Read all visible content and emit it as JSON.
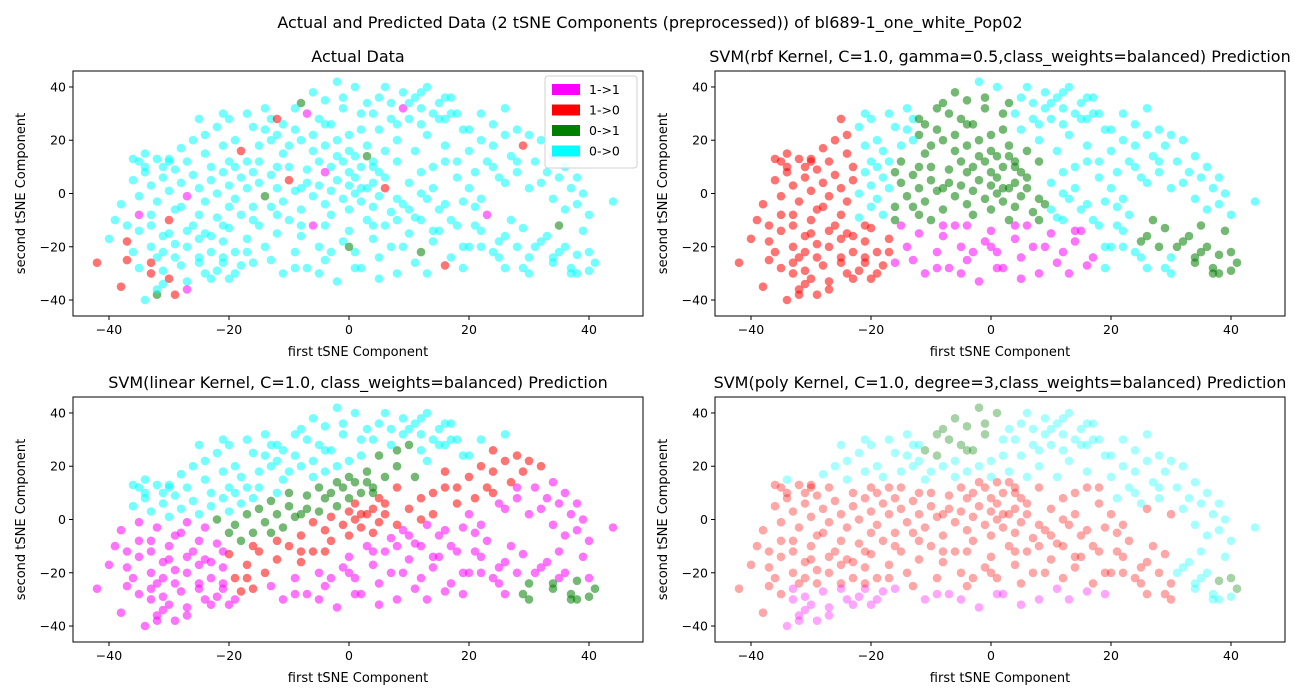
{
  "figure": {
    "suptitle": "Actual and Predicted Data (2 tSNE Components (preprocessed)) of bl689-1_one_white_Pop02"
  },
  "colors": {
    "1->1": "#ff00ff",
    "1->0": "#ff0000",
    "0->1": "#008000",
    "0->0": "#00ffff"
  },
  "legend": {
    "placement": "top-right of first panel",
    "entries": [
      "1->1",
      "1->0",
      "0->1",
      "0->0"
    ]
  },
  "chart_data": [
    {
      "type": "scatter",
      "title": "Actual Data",
      "xlabel": "first tSNE Component",
      "ylabel": "second tSNE Component",
      "xlim": [
        -46,
        49
      ],
      "ylim": [
        -46,
        46
      ],
      "xticks": [
        -40,
        -20,
        0,
        20,
        40
      ],
      "yticks": [
        -40,
        -20,
        0,
        20,
        40
      ],
      "xtick_labels": [
        "−40",
        "−20",
        "0",
        "20",
        "40"
      ],
      "ytick_labels": [
        "−40",
        "−20",
        "0",
        "20",
        "40"
      ],
      "point_alpha": 0.55,
      "classify": "actual"
    },
    {
      "type": "scatter",
      "title": "SVM(rbf Kernel, C=1.0, gamma=0.5,class_weights=balanced) Prediction",
      "xlabel": "first tSNE Component",
      "ylabel": "second tSNE Component",
      "xlim": [
        -46,
        49
      ],
      "ylim": [
        -46,
        46
      ],
      "xticks": [
        -40,
        -20,
        0,
        20,
        40
      ],
      "yticks": [
        -40,
        -20,
        0,
        20,
        40
      ],
      "xtick_labels": [
        "−40",
        "−20",
        "0",
        "20",
        "40"
      ],
      "ytick_labels": [
        "−40",
        "−20",
        "0",
        "20",
        "40"
      ],
      "point_alpha": 0.55,
      "classify": "rbf"
    },
    {
      "type": "scatter",
      "title": "SVM(linear Kernel, C=1.0, class_weights=balanced) Prediction",
      "xlabel": "first tSNE Component",
      "ylabel": "second tSNE Component",
      "xlim": [
        -46,
        49
      ],
      "ylim": [
        -46,
        46
      ],
      "xticks": [
        -40,
        -20,
        0,
        20,
        40
      ],
      "yticks": [
        -40,
        -20,
        0,
        20,
        40
      ],
      "xtick_labels": [
        "−40",
        "−20",
        "0",
        "20",
        "40"
      ],
      "ytick_labels": [
        "−40",
        "−20",
        "0",
        "20",
        "40"
      ],
      "point_alpha": 0.55,
      "classify": "linear"
    },
    {
      "type": "scatter",
      "title": "SVM(poly Kernel, C=1.0, degree=3,class_weights=balanced) Prediction",
      "xlabel": "first tSNE Component",
      "ylabel": "second tSNE Component",
      "xlim": [
        -46,
        49
      ],
      "ylim": [
        -46,
        46
      ],
      "xticks": [
        -40,
        -20,
        0,
        20,
        40
      ],
      "yticks": [
        -40,
        -20,
        0,
        20,
        40
      ],
      "xtick_labels": [
        "−40",
        "−20",
        "0",
        "20",
        "40"
      ],
      "ytick_labels": [
        "−40",
        "−20",
        "0",
        "20",
        "40"
      ],
      "point_alpha": 0.35,
      "classify": "poly"
    }
  ],
  "points": [
    [
      -42,
      -26
    ],
    [
      -40,
      -17
    ],
    [
      -38,
      -35
    ],
    [
      -37,
      -25
    ],
    [
      -36,
      13
    ],
    [
      -35,
      12
    ],
    [
      -34,
      10
    ],
    [
      -35,
      -8
    ],
    [
      -33,
      -8
    ],
    [
      -33,
      -20
    ],
    [
      -34,
      -40
    ],
    [
      -32,
      -38
    ],
    [
      -33,
      -30
    ],
    [
      -32,
      -24
    ],
    [
      -31,
      -29
    ],
    [
      -30,
      -32
    ],
    [
      -31,
      -22
    ],
    [
      -30,
      -15
    ],
    [
      -29,
      -19
    ],
    [
      -30,
      -10
    ],
    [
      -31,
      10
    ],
    [
      -30,
      13
    ],
    [
      -28,
      -5
    ],
    [
      -28,
      -27
    ],
    [
      -27,
      -20
    ],
    [
      -26,
      -12
    ],
    [
      -25,
      -17
    ],
    [
      -25,
      -24
    ],
    [
      -24,
      -15
    ],
    [
      -23,
      -22
    ],
    [
      -22,
      -9
    ],
    [
      -21,
      -18
    ],
    [
      -21,
      -26
    ],
    [
      -20,
      -13
    ],
    [
      -19,
      -22
    ],
    [
      -18,
      -8
    ],
    [
      -17,
      -17
    ],
    [
      -16,
      -26
    ],
    [
      -15,
      -12
    ],
    [
      -14,
      -20
    ],
    [
      -13,
      -25
    ],
    [
      -13,
      -5
    ],
    [
      -12,
      -15
    ],
    [
      -11,
      -30
    ],
    [
      -10,
      -10
    ],
    [
      -9,
      -22
    ],
    [
      -8,
      -16
    ],
    [
      -7,
      -28
    ],
    [
      -6,
      -12
    ],
    [
      -5,
      -20
    ],
    [
      -4,
      -25
    ],
    [
      -3,
      -8
    ],
    [
      -2,
      -33
    ],
    [
      -1,
      -18
    ],
    [
      0,
      -14
    ],
    [
      1,
      -22
    ],
    [
      2,
      -28
    ],
    [
      3,
      -10
    ],
    [
      4,
      -17
    ],
    [
      5,
      -24
    ],
    [
      6,
      -12
    ],
    [
      7,
      -20
    ],
    [
      8,
      -30
    ],
    [
      10,
      -15
    ],
    [
      12,
      -22
    ],
    [
      14,
      -18
    ],
    [
      16,
      -27
    ],
    [
      18,
      -12
    ],
    [
      20,
      -20
    ],
    [
      22,
      -14
    ],
    [
      24,
      -22
    ],
    [
      26,
      -16
    ],
    [
      28,
      -20
    ],
    [
      30,
      -24
    ],
    [
      32,
      -18
    ],
    [
      34,
      -26
    ],
    [
      36,
      -20
    ],
    [
      37,
      -28
    ],
    [
      38,
      -30
    ],
    [
      40,
      -29
    ],
    [
      40,
      -22
    ],
    [
      41,
      -26
    ],
    [
      38,
      -23
    ],
    [
      35,
      -22
    ],
    [
      33,
      -16
    ],
    [
      31,
      -20
    ],
    [
      29,
      -13
    ],
    [
      27,
      -10
    ],
    [
      25,
      -18
    ],
    [
      23,
      -8
    ],
    [
      21,
      -5
    ],
    [
      19,
      -3
    ],
    [
      17,
      -10
    ],
    [
      15,
      -6
    ],
    [
      13,
      -2
    ],
    [
      11,
      -9
    ],
    [
      9,
      -4
    ],
    [
      7,
      -7
    ],
    [
      5,
      -1
    ],
    [
      4,
      -5
    ],
    [
      3,
      2
    ],
    [
      2,
      -3
    ],
    [
      1,
      0
    ],
    [
      0,
      3
    ],
    [
      -1,
      -2
    ],
    [
      -2,
      5
    ],
    [
      -3,
      1
    ],
    [
      -4,
      -4
    ],
    [
      -5,
      3
    ],
    [
      -6,
      -1
    ],
    [
      -7,
      4
    ],
    [
      -8,
      -6
    ],
    [
      -9,
      1
    ],
    [
      -10,
      5
    ],
    [
      -11,
      -3
    ],
    [
      -12,
      2
    ],
    [
      -13,
      7
    ],
    [
      -14,
      -1
    ],
    [
      -15,
      4
    ],
    [
      -16,
      -5
    ],
    [
      -17,
      2
    ],
    [
      -18,
      6
    ],
    [
      -19,
      -2
    ],
    [
      -20,
      3
    ],
    [
      -21,
      8
    ],
    [
      -22,
      0
    ],
    [
      -23,
      5
    ],
    [
      -24,
      -3
    ],
    [
      -25,
      2
    ],
    [
      -26,
      7
    ],
    [
      -27,
      -1
    ],
    [
      -28,
      4
    ],
    [
      -29,
      9
    ],
    [
      -30,
      1
    ],
    [
      -31,
      6
    ],
    [
      -32,
      -3
    ],
    [
      -33,
      3
    ],
    [
      -34,
      8
    ],
    [
      -35,
      -1
    ],
    [
      -36,
      5
    ],
    [
      -36,
      -22
    ],
    [
      -37,
      -12
    ],
    [
      -38,
      -4
    ],
    [
      -32,
      -36
    ],
    [
      -29,
      -38
    ],
    [
      -27,
      -33
    ],
    [
      -24,
      -30
    ],
    [
      -22,
      -29
    ],
    [
      -20,
      -32
    ],
    [
      -18,
      -27
    ],
    [
      -34,
      15
    ],
    [
      -32,
      13
    ],
    [
      -30,
      12
    ],
    [
      -28,
      17
    ],
    [
      -26,
      20
    ],
    [
      -24,
      15
    ],
    [
      -22,
      25
    ],
    [
      -21,
      30
    ],
    [
      -20,
      28
    ],
    [
      -19,
      20
    ],
    [
      -18,
      16
    ],
    [
      -17,
      12
    ],
    [
      -16,
      25
    ],
    [
      -15,
      18
    ],
    [
      -14,
      32
    ],
    [
      -13,
      28
    ],
    [
      -12,
      22
    ],
    [
      -11,
      15
    ],
    [
      -10,
      10
    ],
    [
      -9,
      24
    ],
    [
      -8,
      34
    ],
    [
      -7,
      30
    ],
    [
      -6,
      38
    ],
    [
      -5,
      28
    ],
    [
      -4,
      18
    ],
    [
      -3,
      26
    ],
    [
      -2,
      42
    ],
    [
      -1,
      32
    ],
    [
      0,
      22
    ],
    [
      1,
      14
    ],
    [
      2,
      30
    ],
    [
      3,
      18
    ],
    [
      4,
      10
    ],
    [
      5,
      24
    ],
    [
      6,
      40
    ],
    [
      7,
      34
    ],
    [
      8,
      20
    ],
    [
      9,
      38
    ],
    [
      10,
      28
    ],
    [
      11,
      16
    ],
    [
      12,
      32
    ],
    [
      13,
      22
    ],
    [
      14,
      10
    ],
    [
      15,
      28
    ],
    [
      16,
      18
    ],
    [
      17,
      36
    ],
    [
      18,
      12
    ],
    [
      19,
      24
    ],
    [
      20,
      16
    ],
    [
      21,
      8
    ],
    [
      22,
      20
    ],
    [
      23,
      12
    ],
    [
      24,
      18
    ],
    [
      25,
      6
    ],
    [
      26,
      22
    ],
    [
      27,
      14
    ],
    [
      28,
      8
    ],
    [
      29,
      18
    ],
    [
      30,
      22
    ],
    [
      31,
      12
    ],
    [
      32,
      20
    ],
    [
      33,
      8
    ],
    [
      34,
      14
    ],
    [
      35,
      6
    ],
    [
      36,
      10
    ],
    [
      37,
      2
    ],
    [
      38,
      -4
    ],
    [
      39,
      0
    ],
    [
      40,
      -8
    ],
    [
      44,
      -3
    ],
    [
      -3,
      10
    ],
    [
      -1,
      12
    ],
    [
      1,
      6
    ],
    [
      3,
      14
    ],
    [
      5,
      8
    ],
    [
      -5,
      12
    ],
    [
      -7,
      9
    ],
    [
      2,
      24
    ],
    [
      4,
      30
    ],
    [
      -4,
      35
    ],
    [
      -6,
      22
    ],
    [
      6,
      16
    ],
    [
      8,
      12
    ],
    [
      10,
      4
    ],
    [
      12,
      8
    ],
    [
      14,
      2
    ],
    [
      16,
      12
    ],
    [
      18,
      6
    ],
    [
      20,
      2
    ],
    [
      22,
      -2
    ],
    [
      -9,
      32
    ],
    [
      -11,
      26
    ],
    [
      -13,
      20
    ],
    [
      -15,
      12
    ],
    [
      -17,
      30
    ],
    [
      -19,
      10
    ],
    [
      -21,
      18
    ],
    [
      -23,
      10
    ],
    [
      -25,
      28
    ],
    [
      -27,
      12
    ],
    [
      0,
      16
    ],
    [
      2,
      2
    ],
    [
      -2,
      20
    ],
    [
      -4,
      8
    ],
    [
      6,
      2
    ],
    [
      8,
      -2
    ],
    [
      10,
      -6
    ],
    [
      12,
      -10
    ],
    [
      14,
      -14
    ],
    [
      16,
      -4
    ],
    [
      -20,
      -5
    ],
    [
      -16,
      8
    ],
    [
      -12,
      -8
    ],
    [
      -8,
      2
    ],
    [
      -4,
      -12
    ],
    [
      0,
      -6
    ],
    [
      4,
      12
    ],
    [
      8,
      26
    ],
    [
      12,
      38
    ],
    [
      16,
      28
    ],
    [
      -24,
      22
    ],
    [
      -20,
      12
    ],
    [
      -16,
      -10
    ],
    [
      -12,
      10
    ],
    [
      -8,
      -12
    ],
    [
      -4,
      26
    ],
    [
      0,
      -20
    ],
    [
      4,
      -12
    ],
    [
      8,
      -10
    ],
    [
      12,
      0
    ],
    [
      22,
      -20
    ],
    [
      26,
      -28
    ],
    [
      30,
      -30
    ],
    [
      34,
      -24
    ],
    [
      37,
      -30
    ],
    [
      29,
      -28
    ],
    [
      25,
      -24
    ],
    [
      19,
      -20
    ],
    [
      15,
      -14
    ],
    [
      21,
      -12
    ],
    [
      -35,
      -28
    ],
    [
      -33,
      -26
    ],
    [
      -31,
      -34
    ],
    [
      -29,
      -24
    ],
    [
      -27,
      -36
    ],
    [
      -25,
      -26
    ],
    [
      -23,
      -32
    ],
    [
      -21,
      -24
    ],
    [
      -19,
      -30
    ],
    [
      -17,
      -22
    ],
    [
      -39,
      -10
    ],
    [
      -37,
      -18
    ],
    [
      -35,
      -14
    ],
    [
      -33,
      -12
    ],
    [
      -31,
      -16
    ],
    [
      -29,
      -6
    ],
    [
      -27,
      -14
    ],
    [
      -25,
      -8
    ],
    [
      -23,
      -16
    ],
    [
      -21,
      -12
    ],
    [
      -9,
      -28
    ],
    [
      -5,
      -30
    ],
    [
      -3,
      -22
    ],
    [
      1,
      -28
    ],
    [
      5,
      -32
    ],
    [
      9,
      -20
    ],
    [
      11,
      -26
    ],
    [
      13,
      -30
    ],
    [
      17,
      -24
    ],
    [
      19,
      -28
    ],
    [
      24,
      10
    ],
    [
      26,
      4
    ],
    [
      28,
      12
    ],
    [
      30,
      2
    ],
    [
      32,
      4
    ],
    [
      34,
      -2
    ],
    [
      36,
      -6
    ],
    [
      38,
      6
    ],
    [
      39,
      -14
    ],
    [
      35,
      -12
    ],
    [
      -1,
      36
    ],
    [
      1,
      40
    ],
    [
      3,
      34
    ],
    [
      5,
      36
    ],
    [
      7,
      28
    ],
    [
      9,
      32
    ],
    [
      11,
      36
    ],
    [
      13,
      40
    ],
    [
      15,
      34
    ],
    [
      17,
      30
    ],
    [
      -2,
      14
    ],
    [
      0,
      8
    ],
    [
      2,
      10
    ],
    [
      4,
      4
    ],
    [
      6,
      6
    ],
    [
      -6,
      16
    ],
    [
      -8,
      20
    ],
    [
      -10,
      18
    ],
    [
      -12,
      28
    ],
    [
      -14,
      24
    ],
    [
      20,
      24
    ],
    [
      22,
      30
    ],
    [
      24,
      26
    ],
    [
      26,
      32
    ],
    [
      28,
      24
    ],
    [
      18,
      30
    ],
    [
      16,
      36
    ],
    [
      14,
      30
    ],
    [
      12,
      26
    ],
    [
      10,
      34
    ]
  ]
}
